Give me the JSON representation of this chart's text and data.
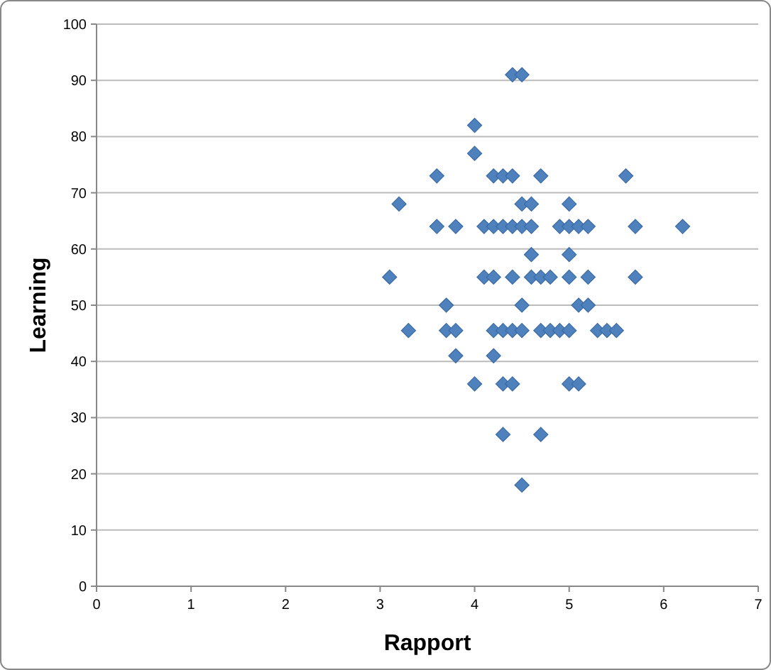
{
  "chart_data": {
    "type": "scatter",
    "xlabel": "Rapport",
    "ylabel": "Learning",
    "xlim": [
      0,
      7
    ],
    "xticks": [
      0,
      1,
      2,
      3,
      4,
      5,
      6,
      7
    ],
    "ylim": [
      0,
      100
    ],
    "yticks": [
      0,
      10,
      20,
      30,
      40,
      50,
      60,
      70,
      80,
      90,
      100
    ],
    "grid": "y",
    "marker": "diamond",
    "series": [
      {
        "color": "#4f81bd",
        "x": [
          4.4,
          4.5,
          4.0,
          4.0,
          3.6,
          4.2,
          4.3,
          4.4,
          4.7,
          5.6,
          3.2,
          4.5,
          4.6,
          5.0,
          3.6,
          3.8,
          4.1,
          4.2,
          4.3,
          4.4,
          4.5,
          4.6,
          4.9,
          5.0,
          5.1,
          5.2,
          5.7,
          6.2,
          4.6,
          5.0,
          3.1,
          4.1,
          4.2,
          4.4,
          4.6,
          4.7,
          4.8,
          5.0,
          5.2,
          5.7,
          3.7,
          4.5,
          5.1,
          5.2,
          3.3,
          3.7,
          3.8,
          4.2,
          4.3,
          4.4,
          4.5,
          4.7,
          4.8,
          4.9,
          5.0,
          5.3,
          5.4,
          5.5,
          3.8,
          4.2,
          4.0,
          4.3,
          4.4,
          5.0,
          5.1,
          4.3,
          4.7,
          4.5
        ],
        "values": [
          91,
          91,
          82,
          77,
          73,
          73,
          73,
          73,
          73,
          73,
          68,
          68,
          68,
          68,
          64,
          64,
          64,
          64,
          64,
          64,
          64,
          64,
          64,
          64,
          64,
          64,
          64,
          64,
          59,
          59,
          55,
          55,
          55,
          55,
          55,
          55,
          55,
          55,
          55,
          55,
          50,
          50,
          50,
          50,
          45.5,
          45.5,
          45.5,
          45.5,
          45.5,
          45.5,
          45.5,
          45.5,
          45.5,
          45.5,
          45.5,
          45.5,
          45.5,
          45.5,
          41,
          41,
          36,
          36,
          36,
          36,
          36,
          27,
          27,
          18
        ]
      }
    ]
  }
}
